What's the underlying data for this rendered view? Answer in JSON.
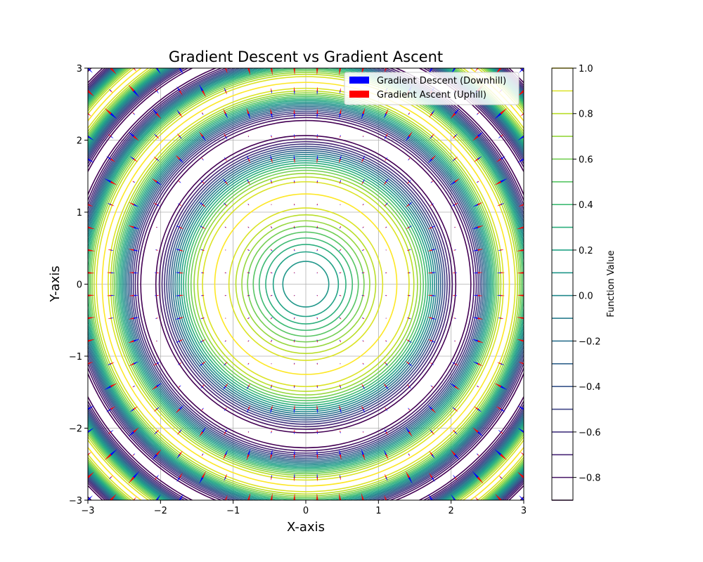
{
  "chart_data": {
    "type": "contour",
    "title": "Gradient Descent vs Gradient Ascent",
    "xlabel": "X-axis",
    "ylabel": "Y-axis",
    "xlim": [
      -3,
      3
    ],
    "ylim": [
      -3,
      3
    ],
    "xticks": [
      "−3",
      "−2",
      "−1",
      "0",
      "1",
      "2",
      "3"
    ],
    "yticks": [
      "−3",
      "−2",
      "−1",
      "0",
      "1",
      "2",
      "3"
    ],
    "grid": true,
    "legend": {
      "placement": "upper-right",
      "entries": [
        {
          "label": "Gradient Descent (Downhill)",
          "color": "#0000ff"
        },
        {
          "label": "Gradient Ascent (Uphill)",
          "color": "#ff0000"
        }
      ]
    },
    "function": "sin(x^2 + y^2)",
    "contour_levels": [
      -0.9,
      -0.8,
      -0.7,
      -0.6,
      -0.5,
      -0.4,
      -0.3,
      -0.2,
      -0.1,
      0.0,
      0.1,
      0.2,
      0.3,
      0.4,
      0.5,
      0.6,
      0.7,
      0.8,
      0.9,
      1.0
    ],
    "colormap": "viridis",
    "colorbar": {
      "label": "Function Value",
      "range": [
        -0.9,
        1.0
      ],
      "ticks": [
        "1.0",
        "0.8",
        "0.6",
        "0.4",
        "0.2",
        "0.0",
        "−0.2",
        "−0.4",
        "−0.6",
        "−0.8"
      ],
      "tick_values": [
        1.0,
        0.8,
        0.6,
        0.4,
        0.2,
        0.0,
        -0.2,
        -0.4,
        -0.6,
        -0.8
      ]
    },
    "quiver_grid": {
      "start": -3,
      "stop": 3,
      "count": 20
    }
  }
}
